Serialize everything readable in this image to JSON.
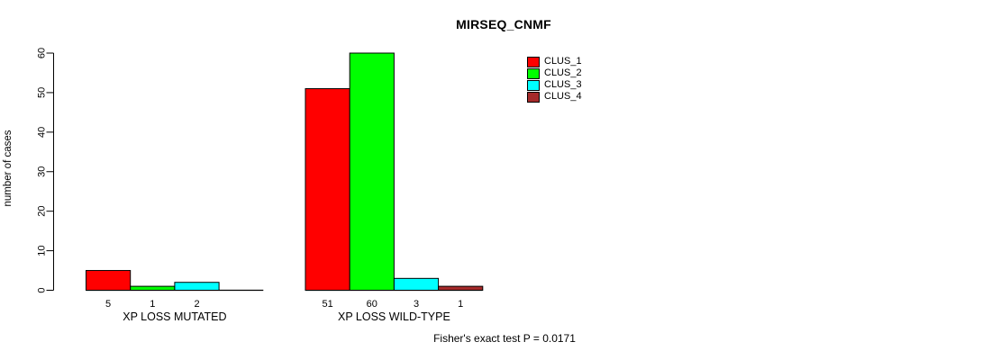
{
  "chart": {
    "title": "MIRSEQ_CNMF",
    "ylabel": "number of cases",
    "annotation": "Fisher's exact test P = 0.0171"
  },
  "legend": {
    "items": [
      {
        "label": "CLUS_1",
        "color": "#ff0000"
      },
      {
        "label": "CLUS_2",
        "color": "#00ff00"
      },
      {
        "label": "CLUS_3",
        "color": "#00ffff"
      },
      {
        "label": "CLUS_4",
        "color": "#a52a2a"
      }
    ]
  },
  "chart_data": {
    "type": "bar",
    "title": "MIRSEQ_CNMF",
    "xlabel": "",
    "ylabel": "number of cases",
    "categories": [
      "XP LOSS MUTATED",
      "XP LOSS WILD-TYPE"
    ],
    "series": [
      {
        "name": "CLUS_1",
        "color": "#ff0000",
        "values": [
          5,
          51
        ]
      },
      {
        "name": "CLUS_2",
        "color": "#00ff00",
        "values": [
          1,
          60
        ]
      },
      {
        "name": "CLUS_3",
        "color": "#00ffff",
        "values": [
          2,
          3
        ]
      },
      {
        "name": "CLUS_4",
        "color": "#a52a2a",
        "values": [
          0,
          1
        ]
      }
    ],
    "bar_value_labels": {
      "XP LOSS MUTATED": [
        "5",
        "1",
        "2",
        ""
      ],
      "XP LOSS WILD-TYPE": [
        "51",
        "60",
        "3",
        "1"
      ]
    },
    "yticks": [
      0,
      10,
      20,
      30,
      40,
      50,
      60
    ],
    "ylim": [
      0,
      60
    ],
    "grid": false,
    "legend_position": "top-right",
    "legend_box": false,
    "annotation": "Fisher's exact test P = 0.0171"
  }
}
